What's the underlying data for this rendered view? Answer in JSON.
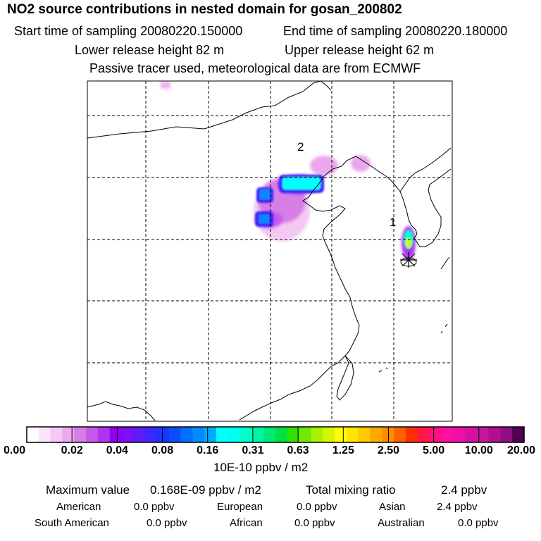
{
  "header": {
    "title": "NO2 source contributions in nested domain for gosan_200802",
    "start_label": "Start time of sampling 20080220.150000",
    "end_label": "End time of sampling 20080220.180000",
    "lower_release": "Lower release height   82 m",
    "upper_release": "Upper release height   62 m",
    "note": "Passive tracer used, meteorological data are from ECMWF"
  },
  "map": {
    "markers": [
      {
        "label": "2"
      },
      {
        "label": "1"
      }
    ]
  },
  "colorbar": {
    "ticks": [
      "0.00",
      "0.02",
      "0.04",
      "0.08",
      "0.16",
      "0.31",
      "0.63",
      "1.25",
      "2.50",
      "5.00",
      "10.00",
      "20.00"
    ],
    "colors": [
      "#ffffff",
      "#fbe5fb",
      "#f5c8f5",
      "#eca8ef",
      "#d77ee6",
      "#c858ea",
      "#b036ed",
      "#9400f0",
      "#7d10f5",
      "#5e1cfa",
      "#3c28ff",
      "#1b34ff",
      "#0b4cff",
      "#0070ff",
      "#008cff",
      "#00aaff",
      "#00ffff",
      "#00fff0",
      "#00ffcc",
      "#00f5a0",
      "#00e878",
      "#00e040",
      "#30e000",
      "#70e800",
      "#a8f000",
      "#d8f500",
      "#ffff00",
      "#ffe400",
      "#ffc800",
      "#ffa800",
      "#ff8c00",
      "#ff6000",
      "#ff3000",
      "#ff1848",
      "#ff1080",
      "#ff10a0",
      "#ee10a8",
      "#d810a0",
      "#c81898",
      "#b01090",
      "#901080",
      "#500050"
    ],
    "unit": "10E-10 ppbv / m2"
  },
  "stats": {
    "max_label": "Maximum value",
    "max_value": "0.168E-09 ppbv / m2",
    "total_label": "Total mixing ratio",
    "total_value": "2.4 ppbv",
    "regions": [
      {
        "name": "American",
        "value": "0.0 ppbv"
      },
      {
        "name": "European",
        "value": "0.0 ppbv"
      },
      {
        "name": "Asian",
        "value": "2.4 ppbv"
      },
      {
        "name": "South American",
        "value": "0.0 ppbv"
      },
      {
        "name": "African",
        "value": "0.0 ppbv"
      },
      {
        "name": "Australian",
        "value": "0.0 ppbv"
      }
    ]
  }
}
